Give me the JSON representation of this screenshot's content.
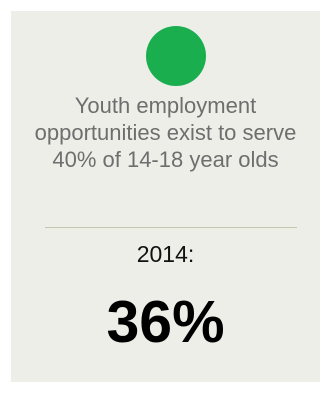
{
  "indicator": {
    "status_color": "#1aae4f",
    "status_icon": "green-circle-icon",
    "description": "Youth employment opportunities exist to serve 40% of 14-18 year olds",
    "year_label": "2014:",
    "value": "36%"
  }
}
